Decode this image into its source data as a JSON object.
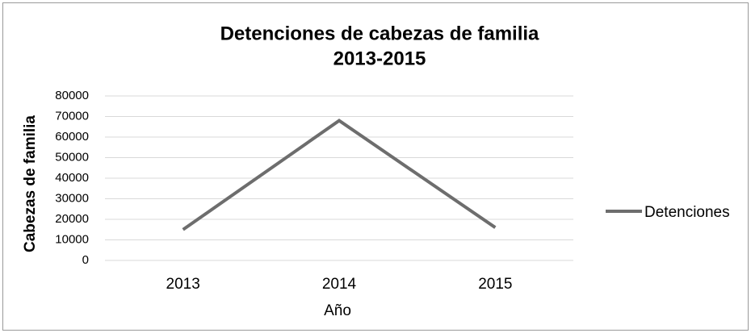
{
  "chart_data": {
    "type": "line",
    "title": [
      "Detenciones de cabezas de familia",
      "2013-2015"
    ],
    "x_label": "Año",
    "y_label": "Cabezas de familia",
    "categories": [
      "2013",
      "2014",
      "2015"
    ],
    "series": [
      {
        "name": "Detenciones",
        "color": "#6d6d6d",
        "values": [
          15000,
          68000,
          16000
        ]
      }
    ],
    "ylim": [
      0,
      80000
    ],
    "yticks": [
      0,
      10000,
      20000,
      30000,
      40000,
      50000,
      60000,
      70000,
      80000
    ],
    "grid": true,
    "legend": "right"
  }
}
